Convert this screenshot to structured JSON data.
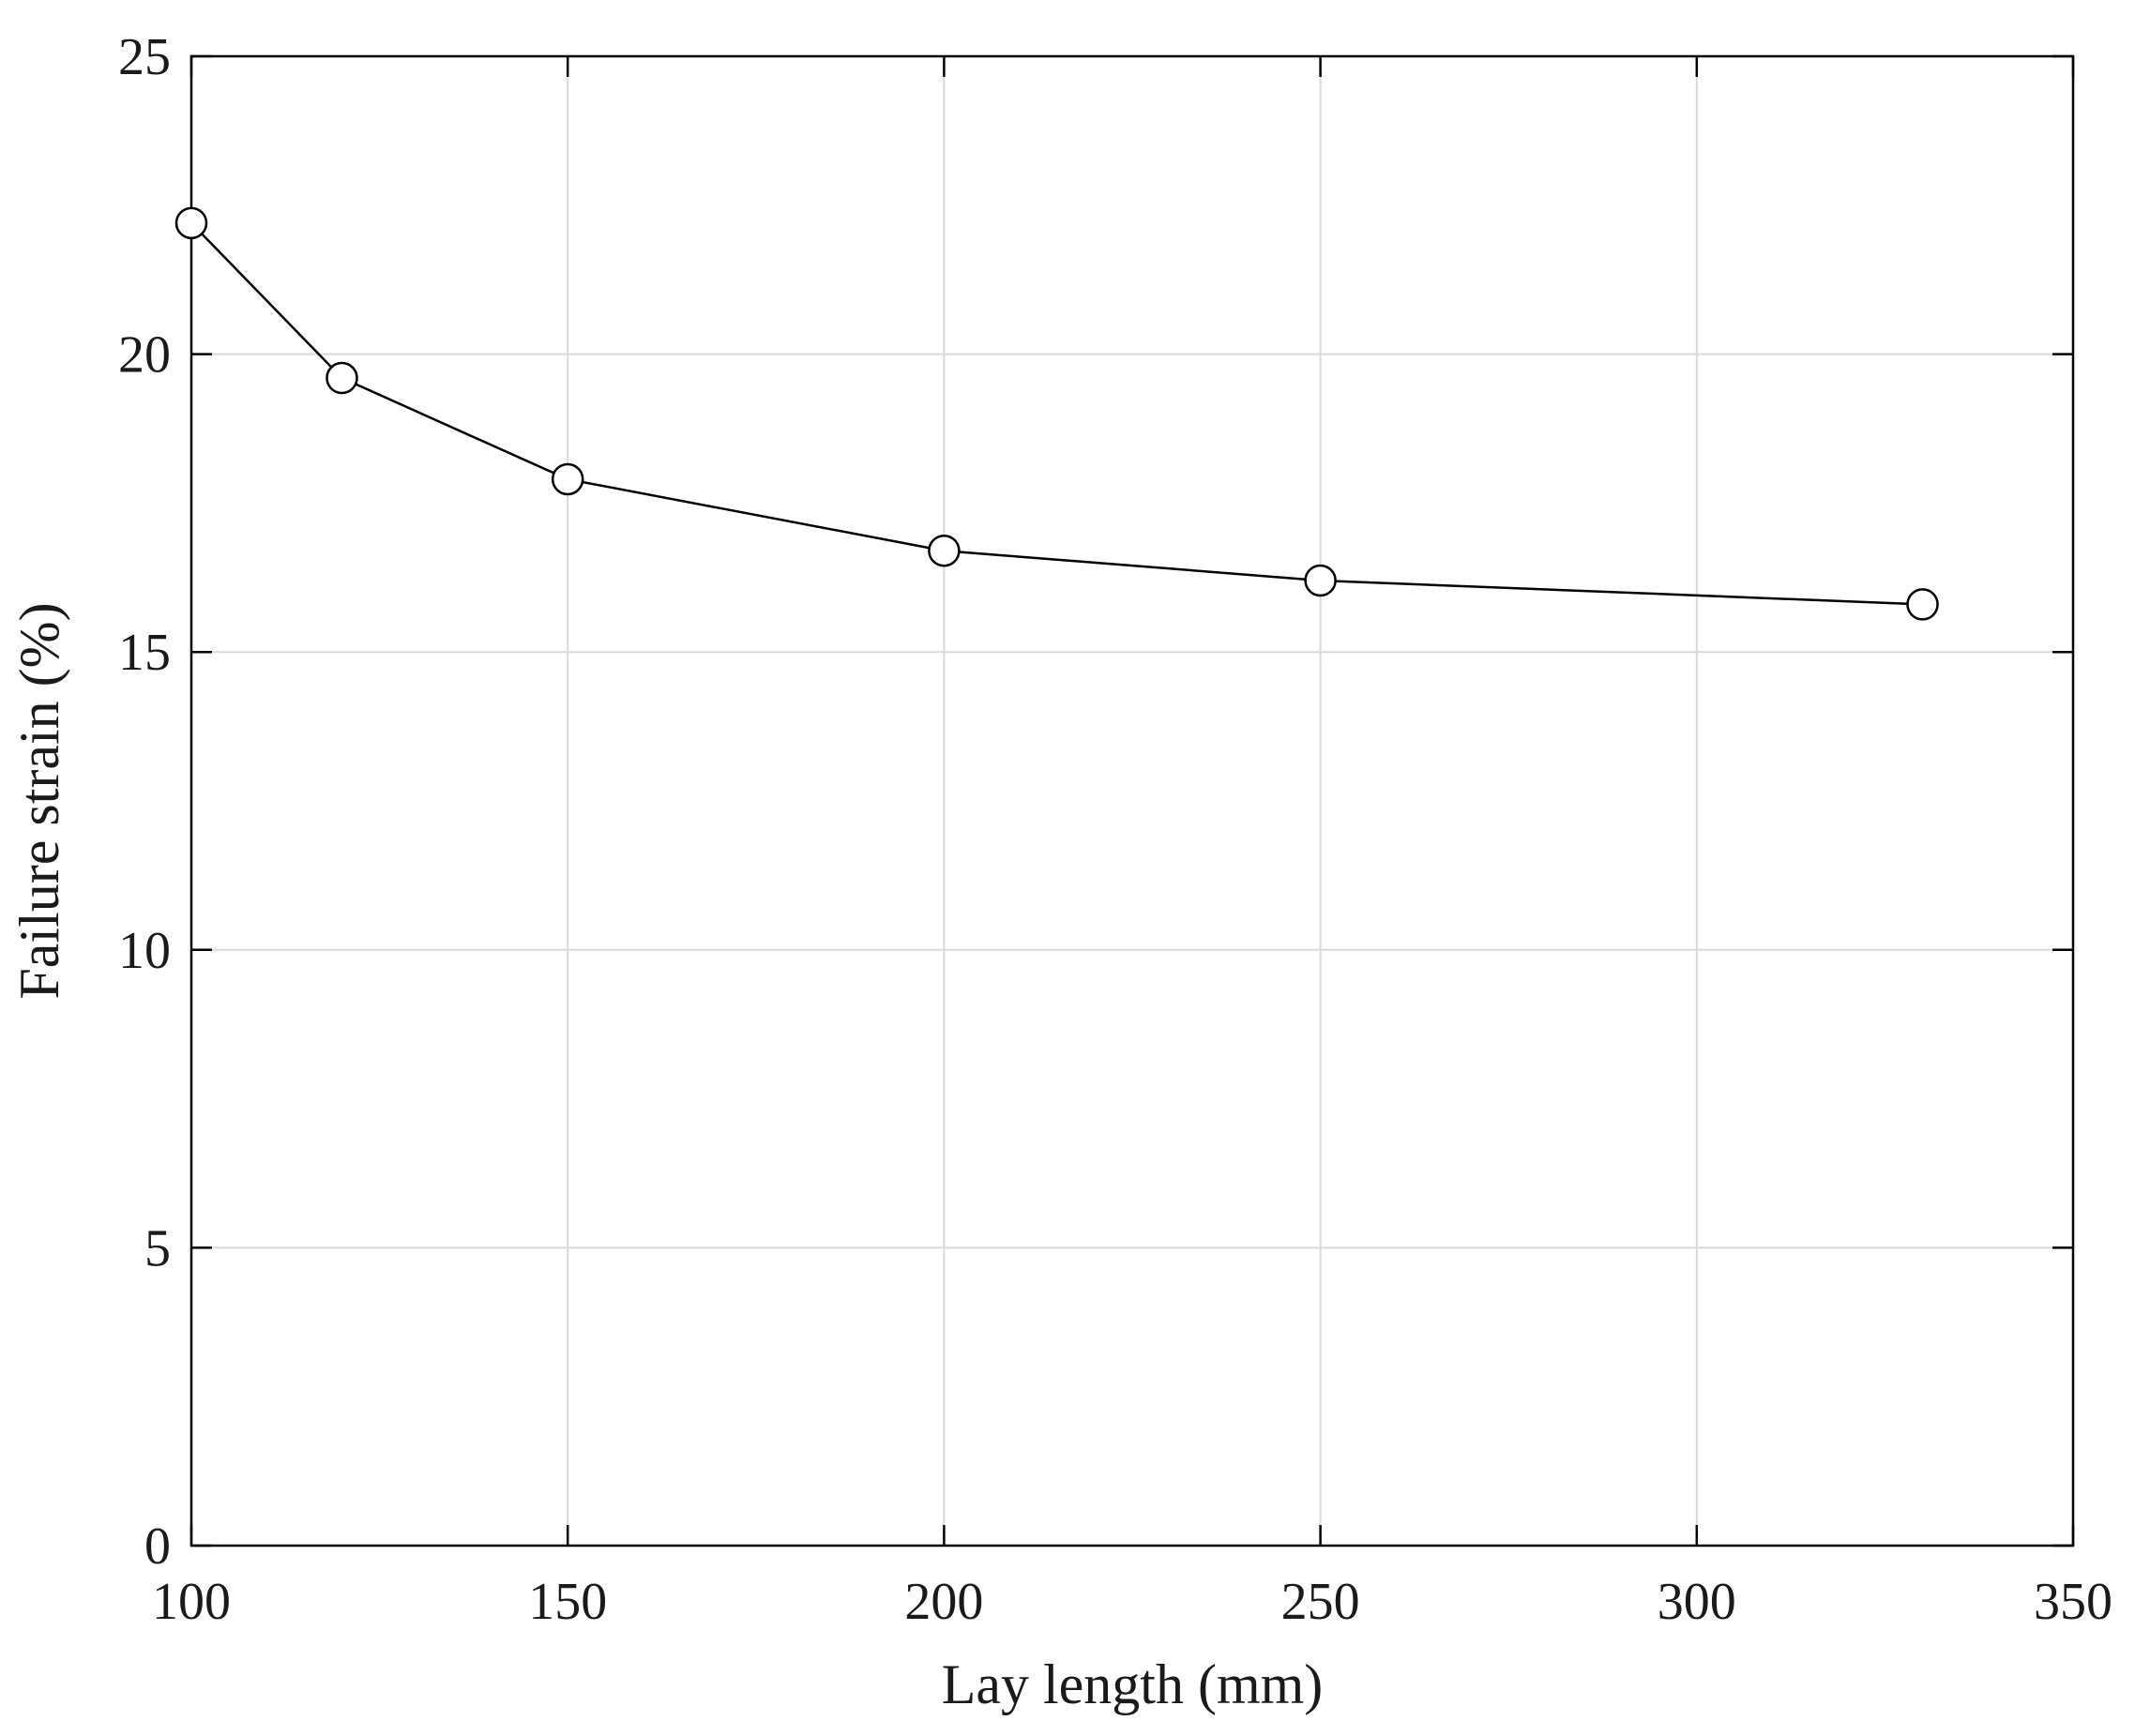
{
  "chart_data": {
    "type": "line",
    "title": "",
    "xlabel": "Lay length (mm)",
    "ylabel": "Failure strain (%)",
    "xlim": [
      100,
      350
    ],
    "ylim": [
      0,
      25
    ],
    "x_ticks": [
      100,
      150,
      200,
      250,
      300,
      350
    ],
    "y_ticks": [
      0,
      5,
      10,
      15,
      20,
      25
    ],
    "x_tick_labels": [
      "100",
      "150",
      "200",
      "250",
      "300",
      "350"
    ],
    "y_tick_labels": [
      "0",
      "5",
      "10",
      "15",
      "20",
      "25"
    ],
    "grid": true,
    "legend": "none",
    "series": [
      {
        "marker": "open-circle",
        "color": "#000000",
        "x": [
          100,
          120,
          150,
          200,
          250,
          330
        ],
        "y": [
          22.2,
          19.6,
          17.9,
          16.7,
          16.2,
          15.8
        ]
      }
    ]
  }
}
